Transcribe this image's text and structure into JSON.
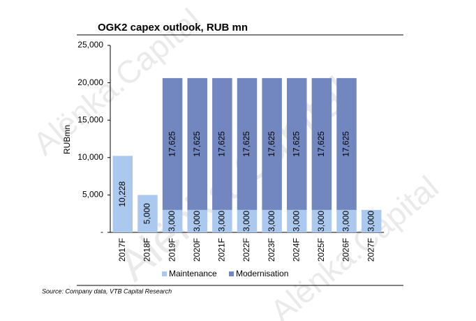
{
  "chart_data": {
    "type": "stacked_bar",
    "title": "OGK2 capex outlook, RUB mn",
    "y_label": "RUBmn",
    "categories": [
      "2017F",
      "2018F",
      "2019F",
      "2020F",
      "2021F",
      "2022F",
      "2023F",
      "2024F",
      "2025F",
      "2026F",
      "2027F"
    ],
    "series": [
      {
        "name": "Maintenance",
        "color": "#abc9ee",
        "values": [
          10228,
          5000,
          3000,
          3000,
          3000,
          3000,
          3000,
          3000,
          3000,
          3000,
          3000
        ],
        "value_labels": [
          "10,228",
          "5,000",
          "3,000",
          "3,000",
          "3,000",
          "3,000",
          "3,000",
          "3,000",
          "3,000",
          "3,000",
          "3,000"
        ]
      },
      {
        "name": "Modernisation",
        "color": "#7286bf",
        "values": [
          null,
          null,
          17625,
          17625,
          17625,
          17625,
          17625,
          17625,
          17625,
          17625,
          null
        ],
        "value_labels": [
          null,
          null,
          "17,625",
          "17,625",
          "17,625",
          "17,625",
          "17,625",
          "17,625",
          "17,625",
          "17,625",
          null
        ]
      }
    ],
    "ylim": [
      0,
      25000
    ],
    "yticks": [
      {
        "value": 0,
        "label": "-"
      },
      {
        "value": 5000,
        "label": "5,000"
      },
      {
        "value": 10000,
        "label": "10,000"
      },
      {
        "value": 15000,
        "label": "15,000"
      },
      {
        "value": 20000,
        "label": "20,000"
      },
      {
        "value": 25000,
        "label": "25,000"
      }
    ],
    "legend": "bottom",
    "source": "Source: Company data, VTB Capital Research",
    "watermark": "Alёnka.Capital"
  }
}
